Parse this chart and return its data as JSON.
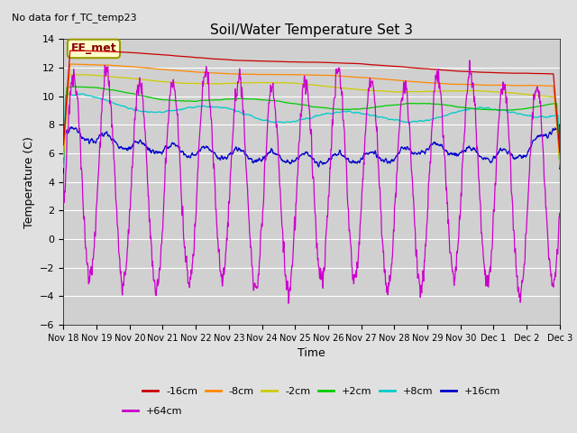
{
  "title": "Soil/Water Temperature Set 3",
  "subtitle": "No data for f_TC_temp23",
  "station_label": "EE_met",
  "xlabel": "Time",
  "ylabel": "Temperature (C)",
  "ylim": [
    -6,
    14
  ],
  "yticks": [
    -6,
    -4,
    -2,
    0,
    2,
    4,
    6,
    8,
    10,
    12,
    14
  ],
  "fig_bg": "#e0e0e0",
  "ax_bg": "#d0d0d0",
  "series_colors": [
    "#cc0000",
    "#ff8800",
    "#cccc00",
    "#00cc00",
    "#00cccc",
    "#0000cc",
    "#cc00cc"
  ],
  "series_labels": [
    "-16cm",
    "-8cm",
    "-2cm",
    "+2cm",
    "+8cm",
    "+16cm",
    "+64cm"
  ],
  "x_tick_labels": [
    "Nov 18",
    "Nov 19",
    "Nov 20",
    "Nov 21",
    "Nov 22",
    "Nov 23",
    "Nov 24",
    "Nov 25",
    "Nov 26",
    "Nov 27",
    "Nov 28",
    "Nov 29",
    "Nov 30",
    "Dec 1",
    "Dec 2",
    "Dec 3"
  ],
  "n_days": 15,
  "n_points": 1500
}
